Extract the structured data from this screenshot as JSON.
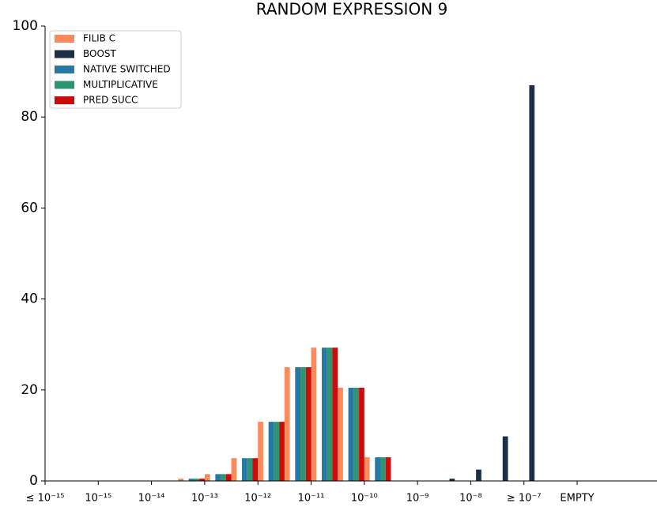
{
  "chart_data": {
    "type": "bar",
    "title": "RANDOM EXPRESSION 9",
    "categories": [
      "≤ 10⁻¹⁵",
      null,
      "10⁻¹⁵",
      null,
      "10⁻¹⁴",
      null,
      "10⁻¹³",
      null,
      "10⁻¹²",
      null,
      "10⁻¹¹",
      null,
      "10⁻¹⁰",
      null,
      "10⁻⁹",
      null,
      "10⁻⁸",
      null,
      "≥ 10⁻⁷",
      null,
      "EMPTY"
    ],
    "series": [
      {
        "name": "FILIB C",
        "color": "#fb8a5d",
        "values": [
          0,
          0,
          0,
          0,
          0,
          0.5,
          1.5,
          5,
          13,
          25,
          29.3,
          20.5,
          5.2,
          0,
          0,
          0,
          0,
          0,
          0,
          0,
          0
        ]
      },
      {
        "name": "BOOST",
        "color": "#1b3047",
        "values": [
          0,
          0,
          0,
          0,
          0,
          0,
          0,
          0,
          0,
          0,
          0,
          0,
          0,
          0,
          0,
          0.5,
          2.5,
          9.8,
          87,
          0,
          0
        ]
      },
      {
        "name": "NATIVE SWITCHED",
        "color": "#2878a6",
        "values": [
          0,
          0,
          0,
          0,
          0,
          0.5,
          1.5,
          5,
          13,
          25,
          29.3,
          20.5,
          5.2,
          0,
          0,
          0,
          0,
          0,
          0,
          0,
          0
        ]
      },
      {
        "name": "MULTIPLICATIVE",
        "color": "#2e9570",
        "values": [
          0,
          0,
          0,
          0,
          0,
          0.5,
          1.5,
          5,
          13,
          25,
          29.3,
          20.5,
          5.2,
          0,
          0,
          0,
          0,
          0,
          0,
          0,
          0
        ]
      },
      {
        "name": "PRED SUCC",
        "color": "#cc0b0b",
        "values": [
          0,
          0,
          0,
          0,
          0,
          0.5,
          1.5,
          5,
          13,
          25,
          29.3,
          20.5,
          5.2,
          0,
          0,
          0,
          0,
          0,
          0,
          0,
          0
        ]
      }
    ],
    "ylim": [
      0,
      100
    ],
    "yticks": [
      0,
      20,
      40,
      60,
      80,
      100
    ],
    "legend": "upper left"
  }
}
